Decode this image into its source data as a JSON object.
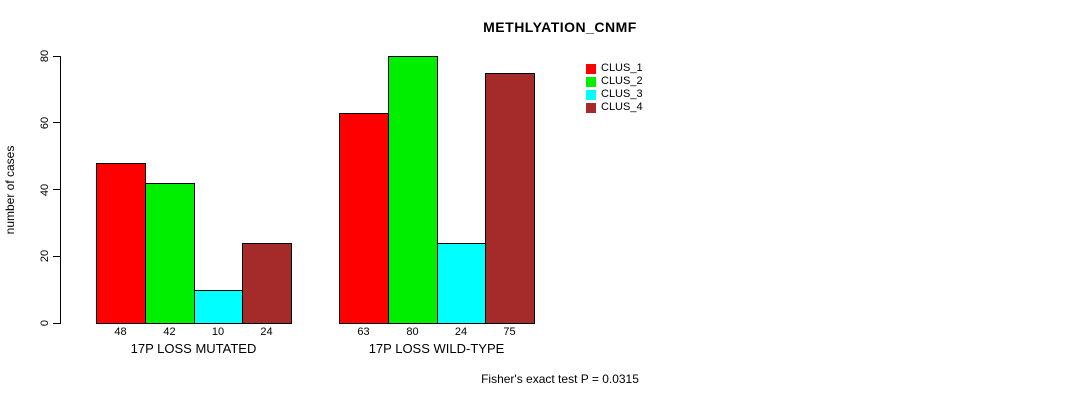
{
  "title": "METHLYATION_CNMF",
  "footer": "Fisher's exact test P = 0.0315",
  "chart_data": {
    "type": "bar",
    "title": "METHLYATION_CNMF",
    "xlabel": "",
    "ylabel": "number of cases",
    "ylim": [
      0,
      80
    ],
    "yticks": [
      0,
      20,
      40,
      60,
      80
    ],
    "grid": false,
    "legend_position": "top-right",
    "groups": [
      "17P LOSS MUTATED",
      "17P LOSS WILD-TYPE"
    ],
    "series": [
      {
        "name": "CLUS_1",
        "color": "#ff0000",
        "values": [
          48,
          63
        ]
      },
      {
        "name": "CLUS_2",
        "color": "#00ee00",
        "values": [
          42,
          80
        ]
      },
      {
        "name": "CLUS_3",
        "color": "#00ffff",
        "values": [
          10,
          24
        ]
      },
      {
        "name": "CLUS_4",
        "color": "#a52a2a",
        "values": [
          24,
          75
        ]
      }
    ],
    "bar_value_labels": [
      [
        48,
        42,
        10,
        24
      ],
      [
        63,
        80,
        24,
        75
      ]
    ],
    "annotation": "Fisher's exact test P = 0.0315"
  }
}
